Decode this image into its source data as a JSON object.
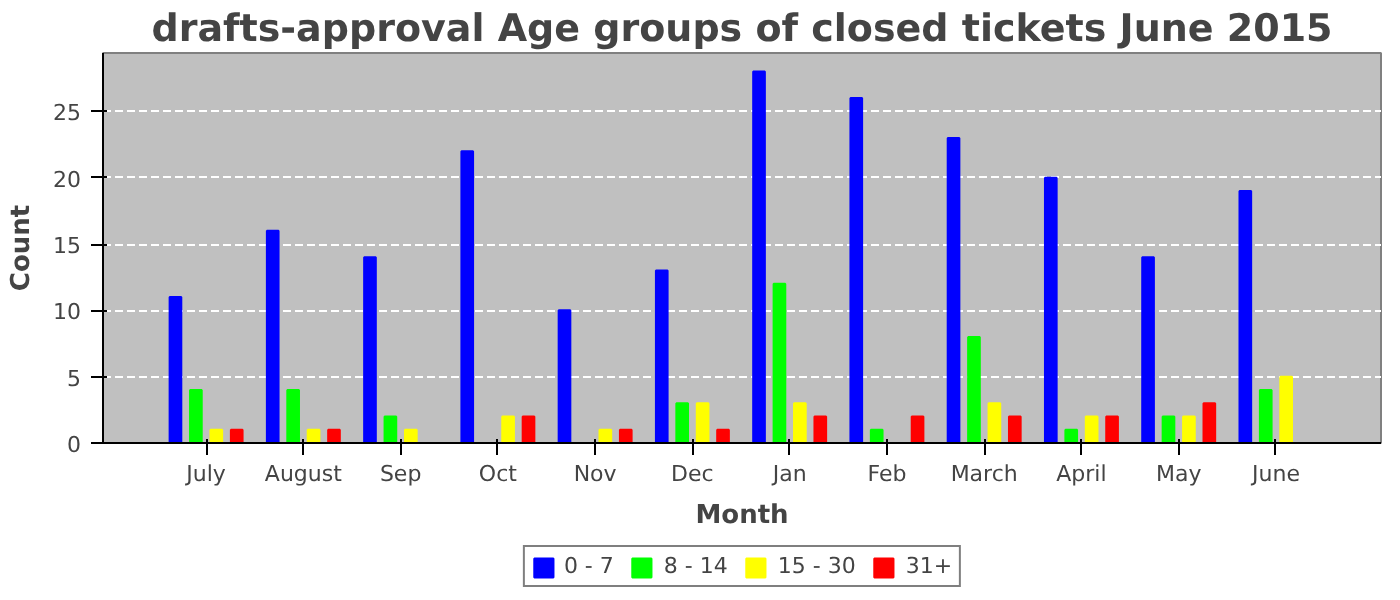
{
  "chart_data": {
    "type": "bar",
    "title": "drafts-approval Age groups of closed tickets June 2015",
    "xlabel": "Month",
    "ylabel": "Count",
    "categories": [
      "July",
      "August",
      "Sep",
      "Oct",
      "Nov",
      "Dec",
      "Jan",
      "Feb",
      "March",
      "April",
      "May",
      "June"
    ],
    "series": [
      {
        "name": "0 - 7",
        "color": "#0000ff",
        "values": [
          11,
          16,
          14,
          22,
          10,
          13,
          28,
          26,
          23,
          20,
          14,
          19
        ]
      },
      {
        "name": "8 - 14",
        "color": "#00ff00",
        "values": [
          4,
          4,
          2,
          0,
          0,
          3,
          12,
          1,
          8,
          1,
          2,
          4
        ]
      },
      {
        "name": "15 - 30",
        "color": "#ffff00",
        "values": [
          1,
          1,
          1,
          2,
          1,
          3,
          3,
          0,
          3,
          2,
          2,
          5
        ]
      },
      {
        "name": "31+",
        "color": "#ff0000",
        "values": [
          1,
          1,
          0,
          2,
          1,
          1,
          2,
          2,
          2,
          2,
          3,
          0
        ]
      }
    ],
    "ylim": [
      0,
      29.4
    ],
    "yticks": [
      0,
      5,
      10,
      15,
      20,
      25
    ],
    "grid": "y",
    "legend": "bottom"
  }
}
